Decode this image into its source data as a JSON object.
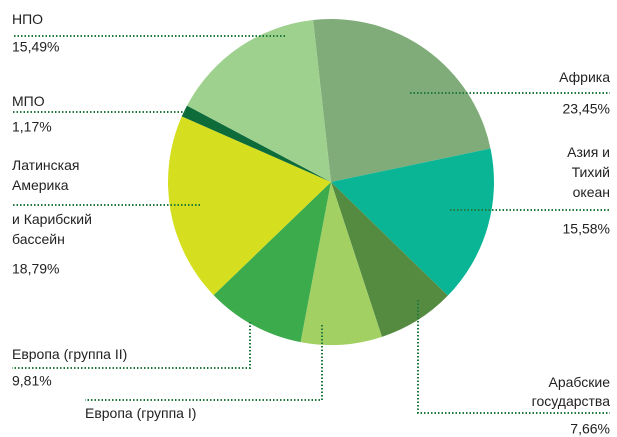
{
  "chart_data": {
    "type": "pie",
    "categories": [
      "Африка",
      "Азия и\nТихий\nокеан",
      "Арабские\nгосударства",
      "Европа (группа I)",
      "Европа (группа II)",
      "Латинская\nАмерика\nи Карибский\nбассейн",
      "МПО",
      "НПО"
    ],
    "values": [
      23.45,
      15.58,
      7.66,
      8.05,
      9.81,
      18.79,
      1.17,
      15.49
    ],
    "value_labels": [
      "23,45%",
      "15,58%",
      "7,66%",
      null,
      "9,81%",
      "18,79%",
      "1,17%",
      "15,49%"
    ],
    "colors": [
      "#7fac78",
      "#0ab596",
      "#548b40",
      "#a3d063",
      "#3cab4c",
      "#d6df1f",
      "#0e6b3a",
      "#9fd18e"
    ]
  }
}
